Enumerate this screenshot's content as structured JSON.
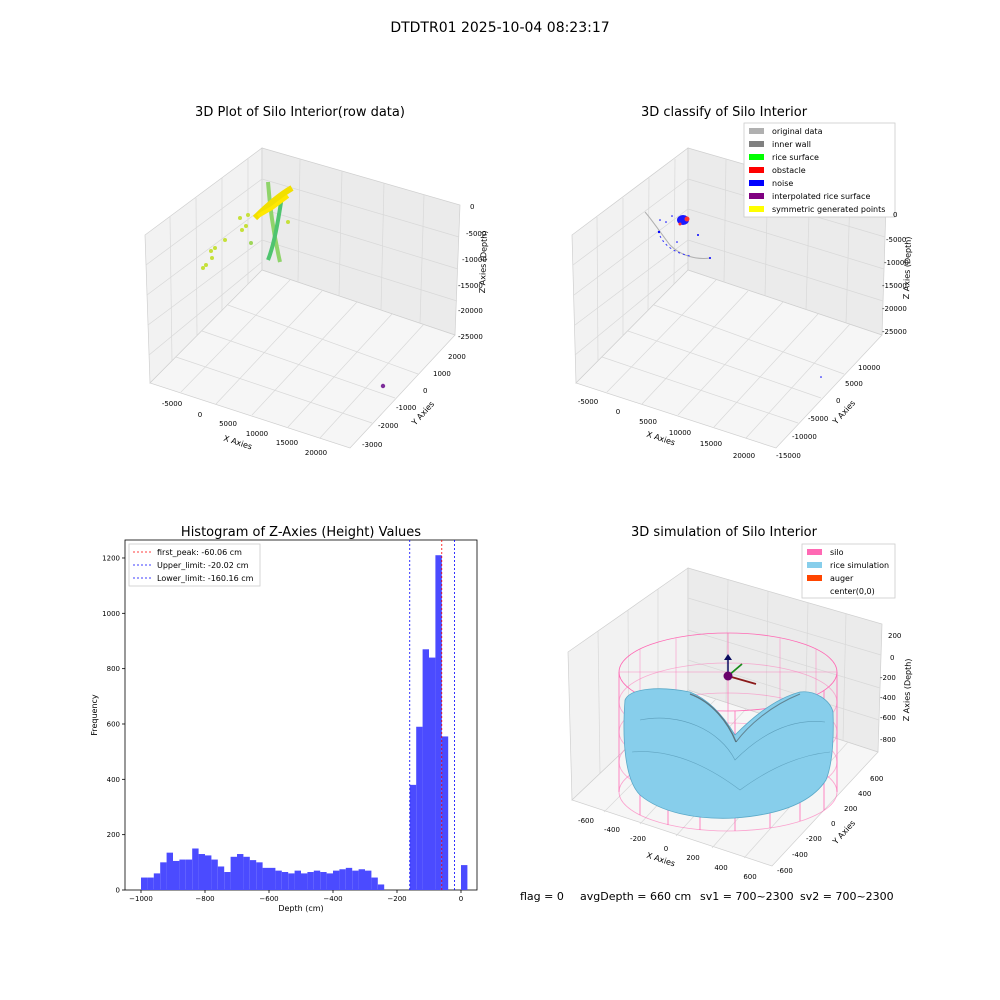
{
  "suptitle": "DTDTR01 2025-10-04 08:23:17",
  "panels": {
    "raw": {
      "title": "3D Plot of Silo Interior(row data)",
      "xlabel": "X Axies",
      "ylabel": "Y Axies",
      "zlabel": "Z Axies (Depth)",
      "xticks": [
        "-5000",
        "0",
        "5000",
        "10000",
        "15000",
        "20000"
      ],
      "yticks": [
        "2000",
        "1000",
        "0",
        "-1000",
        "-2000",
        "-3000"
      ],
      "zticks": [
        "0",
        "-5000",
        "-10000",
        "-15000",
        "-20000",
        "-25000"
      ]
    },
    "classify": {
      "title": "3D classify of Silo Interior",
      "xlabel": "X Axies",
      "ylabel": "Y Axies",
      "zlabel": "Z Axies (Depth)",
      "xticks": [
        "-5000",
        "0",
        "5000",
        "10000",
        "15000",
        "20000"
      ],
      "yticks": [
        "10000",
        "5000",
        "0",
        "-5000",
        "-10000",
        "-15000"
      ],
      "zticks": [
        "0",
        "-5000",
        "-10000",
        "-15000",
        "-20000",
        "-25000"
      ],
      "legend": [
        {
          "label": "original data",
          "color": "#b0b0b0"
        },
        {
          "label": "inner wall",
          "color": "#808080"
        },
        {
          "label": "rice surface",
          "color": "#00ff00"
        },
        {
          "label": "obstacle",
          "color": "#ff0000"
        },
        {
          "label": "noise",
          "color": "#0000ff"
        },
        {
          "label": "interpolated rice surface",
          "color": "#800080"
        },
        {
          "label": "symmetric generated points",
          "color": "#ffff00"
        }
      ]
    },
    "simulation": {
      "title": "3D simulation of Silo Interior",
      "xlabel": "X Axies",
      "ylabel": "Y Axies",
      "zlabel": "Z Axies (Depth)",
      "xticks": [
        "-600",
        "-400",
        "-200",
        "0",
        "200",
        "400",
        "600"
      ],
      "yticks": [
        "600",
        "400",
        "200",
        "0",
        "-200",
        "-400",
        "-600"
      ],
      "zticks": [
        "200",
        "0",
        "-200",
        "-400",
        "-600",
        "-800"
      ],
      "legend": [
        {
          "label": "silo",
          "color": "#ff69b4"
        },
        {
          "label": "rice simulation",
          "color": "#87ceeb"
        },
        {
          "label": "auger",
          "color": "#ff4500"
        },
        {
          "label": "center(0,0)",
          "color": "#ffffff"
        }
      ]
    }
  },
  "chart_data": {
    "type": "bar",
    "title": "Histogram of Z-Axies (Height) Values",
    "xlabel": "Depth (cm)",
    "ylabel": "Frequency",
    "xlim": [
      -1050,
      50
    ],
    "ylim": [
      0,
      1265
    ],
    "xticks": [
      -1000,
      -800,
      -600,
      -400,
      -200,
      0
    ],
    "yticks": [
      0,
      200,
      400,
      600,
      800,
      1000,
      1200
    ],
    "bar_color": "#4b4bff",
    "bin_width": 20,
    "bin_starts": [
      -1000,
      -980,
      -960,
      -940,
      -920,
      -900,
      -880,
      -860,
      -840,
      -820,
      -800,
      -780,
      -760,
      -740,
      -720,
      -700,
      -680,
      -660,
      -640,
      -620,
      -600,
      -580,
      -560,
      -540,
      -520,
      -500,
      -480,
      -460,
      -440,
      -420,
      -400,
      -380,
      -360,
      -340,
      -320,
      -300,
      -280,
      -260,
      -240,
      -220,
      -200,
      -180,
      -160,
      -140,
      -120,
      -100,
      -80,
      -60,
      -40,
      -20,
      0
    ],
    "values": [
      45,
      45,
      60,
      100,
      135,
      105,
      110,
      110,
      150,
      130,
      125,
      110,
      85,
      65,
      120,
      130,
      120,
      108,
      100,
      80,
      80,
      70,
      65,
      60,
      70,
      60,
      65,
      70,
      65,
      60,
      70,
      75,
      80,
      70,
      75,
      70,
      45,
      20,
      0,
      0,
      0,
      0,
      380,
      590,
      870,
      840,
      1210,
      555,
      0,
      0,
      90
    ],
    "vlines": [
      {
        "label": "first_peak: -60.06 cm",
        "x": -60.06,
        "color": "#ff0000"
      },
      {
        "label": "Upper_limit: -20.02 cm",
        "x": -20.02,
        "color": "#0000ff"
      },
      {
        "label": "Lower_limit: -160.16 cm",
        "x": -160.16,
        "color": "#0000ff"
      }
    ]
  },
  "status": {
    "flag": "flag = 0",
    "avg": "avgDepth = 660 cm",
    "sv1": "sv1 = 700~2300",
    "sv2": "sv2 = 700~2300"
  }
}
